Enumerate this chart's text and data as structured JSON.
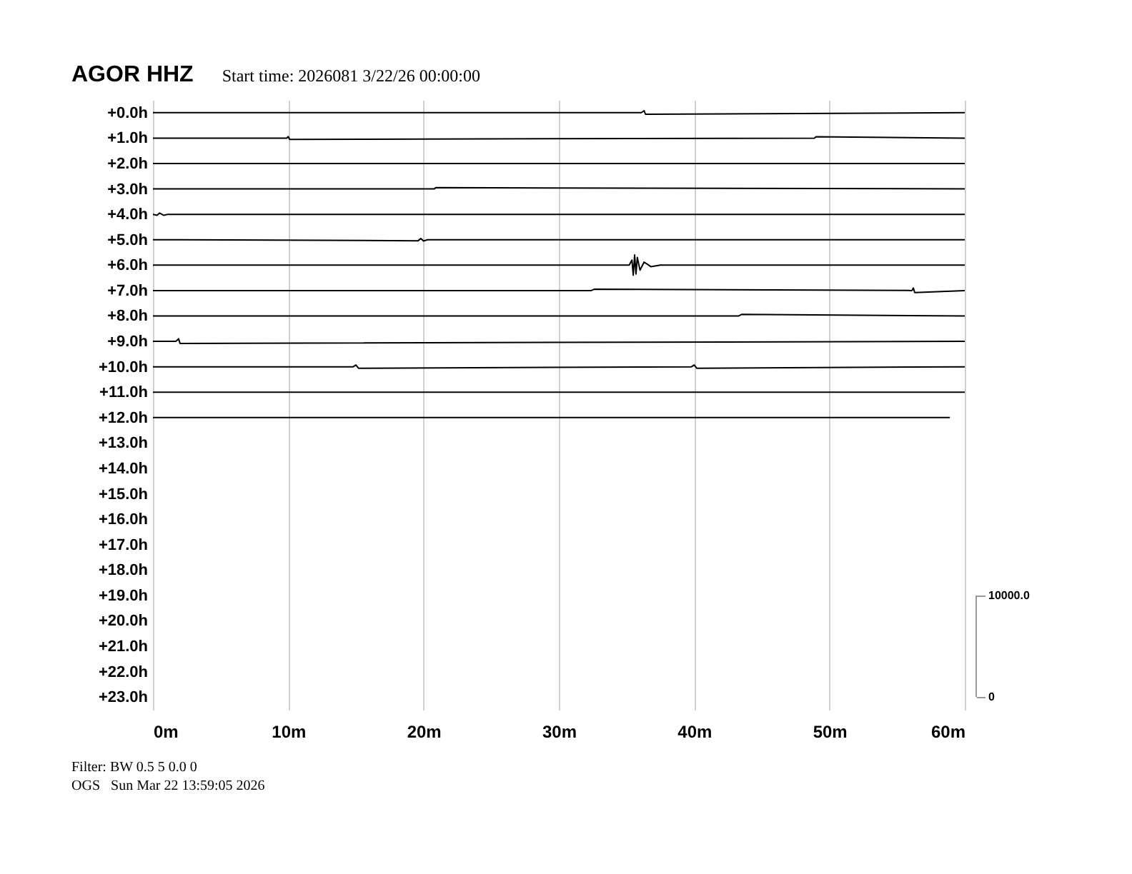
{
  "chart_data": {
    "type": "line",
    "title": "AGOR HHZ",
    "subtitle": "Start time: 2026081  3/22/26 00:00:00",
    "annotations": [
      "Filter: BW 0.5 5 0.0 0",
      "OGS   Sun Mar 22 13:59:05 2026"
    ],
    "xlim": [
      0,
      60
    ],
    "xticks": [
      {
        "value": 0,
        "label": "0m"
      },
      {
        "value": 10,
        "label": "10m"
      },
      {
        "value": 20,
        "label": "20m"
      },
      {
        "value": 30,
        "label": "30m"
      },
      {
        "value": 40,
        "label": "40m"
      },
      {
        "value": 50,
        "label": "50m"
      },
      {
        "value": 60,
        "label": "60m"
      }
    ],
    "ylim": [
      23.5,
      -0.5
    ],
    "yticks": [
      {
        "value": 0,
        "label": "+0.0h"
      },
      {
        "value": 1,
        "label": "+1.0h"
      },
      {
        "value": 2,
        "label": "+2.0h"
      },
      {
        "value": 3,
        "label": "+3.0h"
      },
      {
        "value": 4,
        "label": "+4.0h"
      },
      {
        "value": 5,
        "label": "+5.0h"
      },
      {
        "value": 6,
        "label": "+6.0h"
      },
      {
        "value": 7,
        "label": "+7.0h"
      },
      {
        "value": 8,
        "label": "+8.0h"
      },
      {
        "value": 9,
        "label": "+9.0h"
      },
      {
        "value": 10,
        "label": "+10.0h"
      },
      {
        "value": 11,
        "label": "+11.0h"
      },
      {
        "value": 12,
        "label": "+12.0h"
      },
      {
        "value": 13,
        "label": "+13.0h"
      },
      {
        "value": 14,
        "label": "+14.0h"
      },
      {
        "value": 15,
        "label": "+15.0h"
      },
      {
        "value": 16,
        "label": "+16.0h"
      },
      {
        "value": 17,
        "label": "+17.0h"
      },
      {
        "value": 18,
        "label": "+18.0h"
      },
      {
        "value": 19,
        "label": "+19.0h"
      },
      {
        "value": 20,
        "label": "+20.0h"
      },
      {
        "value": 21,
        "label": "+21.0h"
      },
      {
        "value": 22,
        "label": "+22.0h"
      },
      {
        "value": 23,
        "label": "+23.0h"
      }
    ],
    "y2lim": [
      -1250,
      58750
    ],
    "y2ticks": [
      0,
      {
        "value": 10000,
        "label": "10000.0"
      }
    ],
    "grid": "x",
    "marker": "none",
    "line_style": "solid",
    "series": [
      {
        "color": "#000000",
        "x": [
          0,
          36.1,
          36.3,
          36.4,
          60
        ],
        "values": [
          0,
          0,
          -0.08,
          0.06,
          0
        ]
      },
      {
        "color": "#000000",
        "x": [
          0,
          9.9,
          10.0,
          10.1,
          48.9,
          49.0,
          60
        ],
        "values": [
          1,
          1,
          0.94,
          1.05,
          1,
          0.95,
          1
        ]
      },
      {
        "color": "#000000",
        "x": [
          0,
          60
        ],
        "values": [
          2,
          2
        ]
      },
      {
        "color": "#000000",
        "x": [
          0,
          20.8,
          20.9,
          60
        ],
        "values": [
          3,
          3,
          2.95,
          3
        ]
      },
      {
        "color": "#000000",
        "x": [
          0,
          0.3,
          0.5,
          0.8,
          1.1,
          60
        ],
        "values": [
          4,
          4.04,
          3.95,
          4.04,
          4,
          4
        ]
      },
      {
        "color": "#000000",
        "x": [
          0,
          19.6,
          19.8,
          20.0,
          20.3,
          60
        ],
        "values": [
          5,
          5.04,
          4.95,
          5.05,
          5,
          5
        ]
      },
      {
        "color": "#000000",
        "x": [
          0,
          35.2,
          35.4,
          35.5,
          35.6,
          35.7,
          35.8,
          36.0,
          36.3,
          36.8,
          37.5,
          60
        ],
        "values": [
          6,
          6,
          5.8,
          6.4,
          5.6,
          6.35,
          5.7,
          6.2,
          5.88,
          6.06,
          6,
          6
        ]
      },
      {
        "color": "#000000",
        "x": [
          0,
          32.4,
          32.6,
          56.1,
          56.2,
          56.3,
          60
        ],
        "values": [
          7,
          7,
          6.95,
          7,
          6.9,
          7.08,
          7
        ]
      },
      {
        "color": "#000000",
        "x": [
          0,
          43.3,
          43.5,
          60
        ],
        "values": [
          8,
          8,
          7.94,
          8
        ]
      },
      {
        "color": "#000000",
        "x": [
          0,
          1.7,
          1.9,
          2.0,
          60
        ],
        "values": [
          9,
          9,
          8.9,
          9.08,
          9
        ]
      },
      {
        "color": "#000000",
        "x": [
          0,
          14.8,
          15.0,
          15.2,
          39.8,
          40.0,
          40.2,
          60
        ],
        "values": [
          10,
          10,
          9.93,
          10.06,
          10,
          9.93,
          10.06,
          10
        ]
      },
      {
        "color": "#000000",
        "x": [
          0,
          60
        ],
        "values": [
          11,
          11
        ]
      },
      {
        "color": "#000000",
        "x": [
          0,
          58.9
        ],
        "values": [
          12,
          12
        ]
      }
    ]
  }
}
